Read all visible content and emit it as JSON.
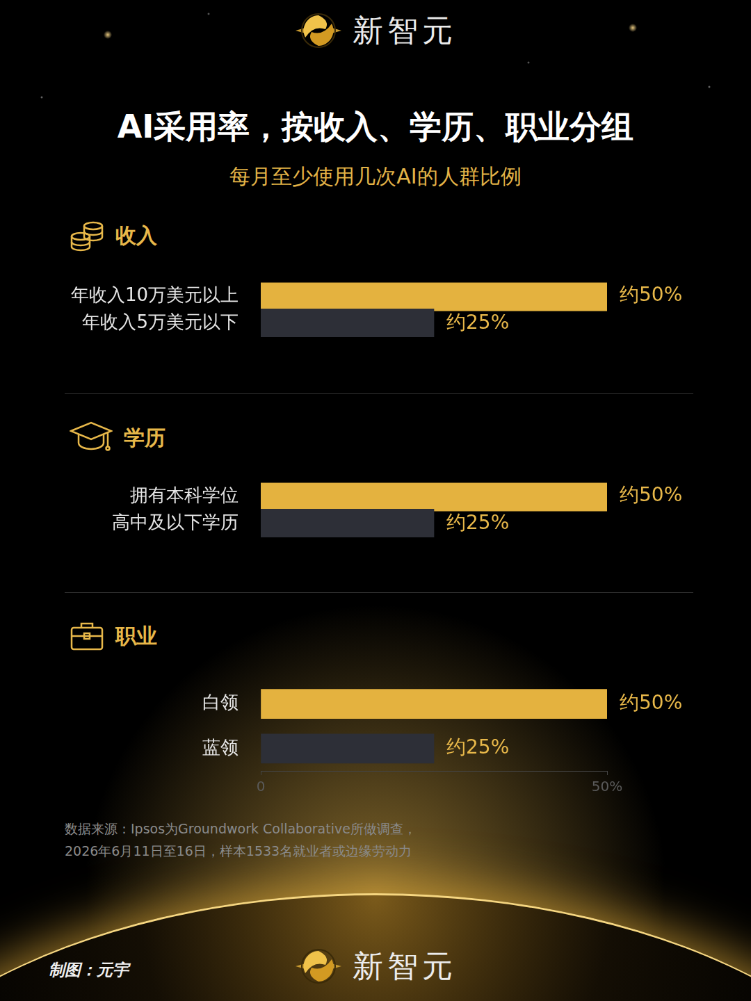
{
  "header": {
    "brand": "新智元",
    "title": "AI采用率，按收入、学历、职业分组",
    "subtitle": "每月至少使用几次AI的人群比例"
  },
  "chart_data": [
    {
      "type": "bar",
      "orientation": "horizontal",
      "title": "收入",
      "categories": [
        "年收入10万美元以上",
        "年收入5万美元以下"
      ],
      "values": [
        50,
        25
      ],
      "value_labels": [
        "约50%",
        "约25%"
      ],
      "colors": [
        "#e4b23f",
        "#2d2f37"
      ],
      "xlim": [
        0,
        50
      ],
      "xticks": [
        0,
        {
          "value": 50,
          "label": "50%"
        }
      ],
      "grid": false,
      "data_labels": true,
      "tick_labels": "y"
    },
    {
      "type": "bar",
      "orientation": "horizontal",
      "title": "学历",
      "categories": [
        "拥有本科学位",
        "高中及以下学历"
      ],
      "values": [
        50,
        25
      ],
      "value_labels": [
        "约50%",
        "约25%"
      ],
      "colors": [
        "#e4b23f",
        "#2d2f37"
      ],
      "xlim": [
        0,
        50
      ],
      "xticks": [
        0,
        {
          "value": 50,
          "label": "50%"
        }
      ],
      "grid": false,
      "data_labels": true,
      "tick_labels": "y"
    },
    {
      "type": "bar",
      "orientation": "horizontal",
      "title": "职业",
      "categories": [
        "白领",
        "蓝领"
      ],
      "values": [
        50,
        25
      ],
      "value_labels": [
        "约50%",
        "约25%"
      ],
      "colors": [
        "#e4b23f",
        "#2d2f37"
      ],
      "xlim": [
        0,
        50
      ],
      "xticks": [
        0,
        {
          "value": 50,
          "label": "50%"
        }
      ],
      "grid": false,
      "data_labels": true,
      "tick_labels": true
    }
  ],
  "footer": {
    "source": [
      "数据来源：Ipsos为Groundwork Collaborative所做调查，",
      "2026年6月11日至16日，样本1533名就业者或边缘劳动力"
    ],
    "credit": "制图：元宇",
    "brand": "新智元"
  }
}
